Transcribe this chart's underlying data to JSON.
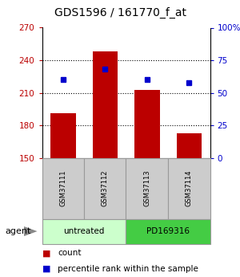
{
  "title": "GDS1596 / 161770_f_at",
  "samples": [
    "GSM37111",
    "GSM37112",
    "GSM37113",
    "GSM37114"
  ],
  "bar_values": [
    191,
    248,
    213,
    173
  ],
  "percentile_values": [
    60,
    68,
    60,
    58
  ],
  "ylim_left": [
    150,
    270
  ],
  "yticks_left": [
    150,
    180,
    210,
    240,
    270
  ],
  "ylim_right": [
    0,
    100
  ],
  "yticks_right": [
    0,
    25,
    50,
    75,
    100
  ],
  "ytick_labels_right": [
    "0",
    "25",
    "50",
    "75",
    "100%"
  ],
  "bar_color": "#bb0000",
  "percentile_color": "#0000cc",
  "bar_width": 0.6,
  "groups": [
    {
      "label": "untreated",
      "color": "#ccffcc",
      "samples": [
        0,
        1
      ]
    },
    {
      "label": "PD169316",
      "color": "#44cc44",
      "samples": [
        2,
        3
      ]
    }
  ],
  "agent_label": "agent",
  "sample_box_color": "#cccccc",
  "sample_box_edge": "#999999",
  "background_color": "#ffffff",
  "plot_bg_color": "#ffffff",
  "title_fontsize": 10,
  "tick_fontsize": 7.5,
  "legend_fontsize": 7.5
}
